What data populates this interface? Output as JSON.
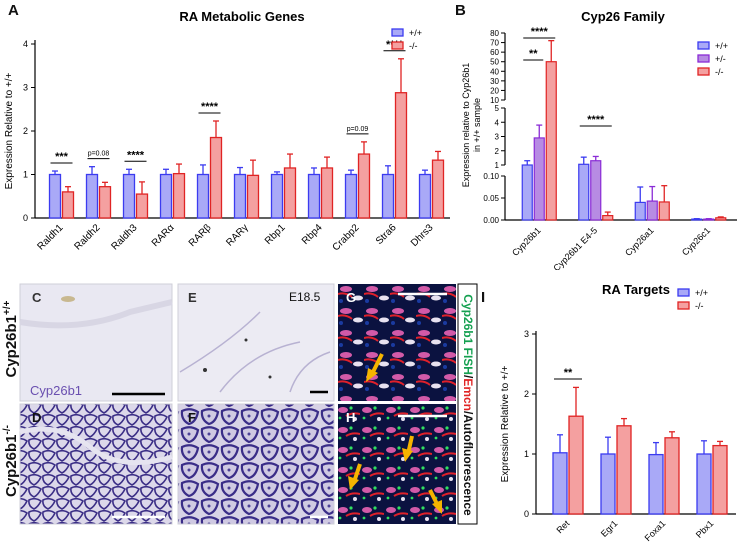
{
  "colors": {
    "wt": "#3b3bf0",
    "wt_fill": "#a9a9f7",
    "ko": "#e02424",
    "ko_fill": "#f4a0a0",
    "het": "#8a2bd6",
    "het_fill": "#b78be3"
  },
  "panel_letters": {
    "A": "A",
    "B": "B",
    "C": "C",
    "D": "D",
    "E": "E",
    "F": "F",
    "G": "G",
    "H": "H",
    "I": "I"
  },
  "panelA": {
    "title": "RA Metabolic Genes",
    "ylabel": "Expression Relative to +/+",
    "legend": [
      "+/+",
      "-/-"
    ]
  },
  "panelB": {
    "title": "Cyp26 Family",
    "ylabel_line1": "Expression relative to Cyp26b1",
    "ylabel_line2": "in +/+ sample",
    "legend": [
      "+/+",
      "+/-",
      "-/-"
    ]
  },
  "panelI": {
    "title": "RA Targets",
    "ylabel": "Expression Relative to +/+",
    "legend": [
      "+/+",
      "-/-"
    ]
  },
  "images": {
    "label_wt": "Cyp26b1",
    "label_wt_sup": "+/+",
    "label_ko": "Cyp26b1",
    "label_ko_sup": "-/-",
    "probe": "Cyp26b1",
    "stage": "E18.5",
    "fish_green": "Cyp26b1 FISH",
    "fish_sep1": "/",
    "fish_red": "Emcn",
    "fish_sep2": "/",
    "fish_white": "Autofluorescence"
  },
  "chart_data": [
    {
      "panel": "A",
      "type": "bar",
      "title": "RA Metabolic Genes",
      "xlabel": "",
      "ylabel": "Expression Relative to +/+",
      "ylim": [
        0,
        4
      ],
      "categories": [
        "Raldh1",
        "Raldh2",
        "Raldh3",
        "RARα",
        "RARβ",
        "RARγ",
        "Rbp1",
        "Rbp4",
        "Crabp2",
        "Stra6",
        "Dhrs3"
      ],
      "series": [
        {
          "name": "+/+",
          "values": [
            1,
            1,
            1,
            1,
            1,
            1,
            1,
            1,
            1,
            1,
            1
          ],
          "errors": [
            0.08,
            0.18,
            0.12,
            0.12,
            0.22,
            0.16,
            0.06,
            0.15,
            0.1,
            0.2,
            0.1
          ]
        },
        {
          "name": "-/-",
          "values": [
            0.6,
            0.72,
            0.55,
            1.02,
            1.85,
            0.98,
            1.15,
            1.15,
            1.47,
            2.88,
            1.33
          ],
          "errors": [
            0.12,
            0.1,
            0.28,
            0.22,
            0.38,
            0.35,
            0.32,
            0.25,
            0.28,
            0.78,
            0.2
          ]
        }
      ],
      "annotations": [
        {
          "category": "Raldh1",
          "text": "***"
        },
        {
          "category": "Raldh2",
          "text": "p=0.08"
        },
        {
          "category": "Raldh3",
          "text": "****"
        },
        {
          "category": "RARβ",
          "text": "****"
        },
        {
          "category": "Crabp2",
          "text": "p=0.09"
        },
        {
          "category": "Stra6",
          "text": "****"
        }
      ]
    },
    {
      "panel": "B",
      "type": "bar",
      "title": "Cyp26 Family",
      "ylabel": "Expression relative to Cyp26b1 in +/+ sample",
      "y_segments": [
        {
          "range": [
            0,
            0.1
          ],
          "ticks": [
            "0.00",
            "0.05",
            "0.10"
          ]
        },
        {
          "range": [
            1,
            5
          ],
          "ticks": [
            "1",
            "2",
            "3",
            "4",
            "5"
          ]
        },
        {
          "range": [
            10,
            80
          ],
          "ticks": [
            "10",
            "20",
            "30",
            "40",
            "50",
            "60",
            "70",
            "80"
          ]
        }
      ],
      "categories": [
        "Cyp26b1",
        "Cyp26b1 E4-5",
        "Cyp26a1",
        "Cyp26c1"
      ],
      "series": [
        {
          "name": "+/+",
          "values": [
            1.0,
            1.05,
            0.04,
            0.002
          ],
          "errors": [
            0.3,
            0.5,
            0.035,
            0.001
          ]
        },
        {
          "name": "+/-",
          "values": [
            2.9,
            1.3,
            0.043,
            0.002
          ],
          "errors": [
            0.9,
            0.3,
            0.033,
            0.001
          ]
        },
        {
          "name": "-/-",
          "values": [
            50,
            0.01,
            0.041,
            0.005
          ],
          "errors": [
            22,
            0.008,
            0.037,
            0.002
          ]
        }
      ],
      "annotations": [
        {
          "between": "Cyp26b1 +/+ vs -/-",
          "text": "****"
        },
        {
          "between": "Cyp26b1 +/+ vs +/-",
          "text": "**"
        },
        {
          "between": "Cyp26b1 E4-5 +/+ vs -/-",
          "text": "****"
        }
      ]
    },
    {
      "panel": "I",
      "type": "bar",
      "title": "RA Targets",
      "ylabel": "Expression Relative to +/+",
      "ylim": [
        0,
        3
      ],
      "categories": [
        "Ret",
        "Egr1",
        "Foxa1",
        "Pbx1"
      ],
      "series": [
        {
          "name": "+/+",
          "values": [
            1.02,
            1.0,
            0.99,
            1.0
          ],
          "errors": [
            0.3,
            0.28,
            0.2,
            0.22
          ]
        },
        {
          "name": "-/-",
          "values": [
            1.63,
            1.47,
            1.27,
            1.14
          ],
          "errors": [
            0.48,
            0.12,
            0.1,
            0.07
          ]
        }
      ],
      "annotations": [
        {
          "category": "Ret",
          "text": "**"
        }
      ]
    }
  ]
}
